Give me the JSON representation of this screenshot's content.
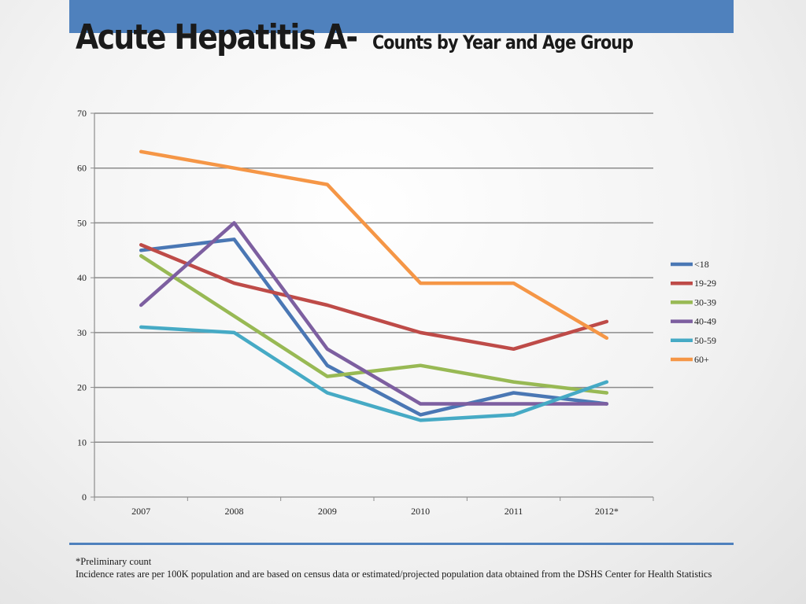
{
  "slide": {
    "title_main": "Acute Hepatitis A-",
    "title_sub": "Counts by Year and Age Group",
    "footnote_1": "*Preliminary count",
    "footnote_2": "Incidence rates are per 100K population and are based on census data or estimated/projected population data obtained from the DSHS Center for Health Statistics"
  },
  "colors": {
    "accent_bar": "#4f81bd",
    "gridline": "#8c8c8c"
  },
  "chart_data": {
    "type": "line",
    "title": "",
    "xlabel": "",
    "ylabel": "",
    "categories": [
      "2007",
      "2008",
      "2009",
      "2010",
      "2011",
      "2012*"
    ],
    "ylim": [
      0,
      70
    ],
    "yticks": [
      0,
      10,
      20,
      30,
      40,
      50,
      60,
      70
    ],
    "grid": true,
    "legend_position": "right",
    "series": [
      {
        "name": "<18",
        "color": "#4a77b4",
        "values": [
          45,
          47,
          24,
          15,
          19,
          17
        ]
      },
      {
        "name": "19-29",
        "color": "#be4b48",
        "values": [
          46,
          39,
          35,
          30,
          27,
          32
        ]
      },
      {
        "name": "30-39",
        "color": "#98b954",
        "values": [
          44,
          33,
          22,
          24,
          21,
          19
        ]
      },
      {
        "name": "40-49",
        "color": "#7d5fa0",
        "values": [
          35,
          50,
          27,
          17,
          17,
          17
        ]
      },
      {
        "name": "50-59",
        "color": "#46aac5",
        "values": [
          31,
          30,
          19,
          14,
          15,
          21
        ]
      },
      {
        "name": "60+",
        "color": "#f59646",
        "values": [
          63,
          60,
          57,
          39,
          39,
          29
        ]
      }
    ]
  }
}
